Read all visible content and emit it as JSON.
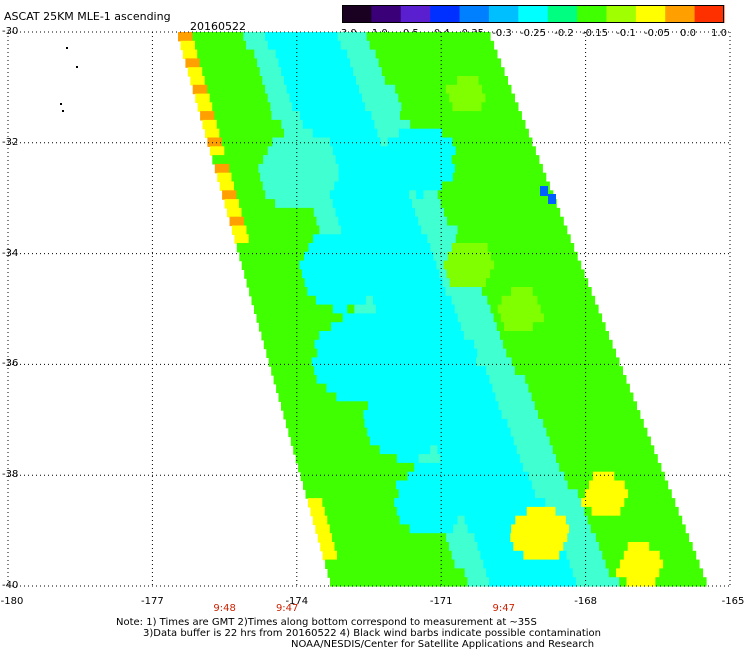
{
  "header": {
    "title": "ASCAT 25KM MLE-1 ascending",
    "date": "20160522"
  },
  "colorbar": {
    "ticks": [
      "-3.0",
      "-1.0",
      "-0.5",
      "-0.4",
      "-0.35",
      "-0.3",
      "-0.25",
      "-0.2",
      "-0.15",
      "-0.1",
      "-0.05",
      "0.0",
      "1.0"
    ],
    "colors": [
      "#1a0021",
      "#3a0078",
      "#5a20d0",
      "#0030ff",
      "#0080ff",
      "#00bfff",
      "#00ffff",
      "#00ff80",
      "#40ff00",
      "#a0ff00",
      "#ffff00",
      "#ffa000",
      "#ff3000"
    ]
  },
  "map": {
    "lat_labels": [
      "-30",
      "-32",
      "-34",
      "-36",
      "-38",
      "-40"
    ],
    "lon_labels": [
      "-180",
      "-177",
      "-174",
      "-171",
      "-168",
      "-165"
    ],
    "lat_values": [
      -30,
      -32,
      -34,
      -36,
      -38,
      -40
    ],
    "lon_values": [
      -180,
      -177,
      -174,
      -171,
      -168,
      -165
    ],
    "swath_field": "MLE residual",
    "colors": {
      "cyan": "#00ffff",
      "lightcyan": "#40ffd0",
      "aqua": "#00e6ff",
      "blue": "#0060ff",
      "green": "#40ff00",
      "lime": "#80ff00",
      "yellow": "#ffff00",
      "orange": "#ffa000"
    }
  },
  "times": [
    {
      "lon": -175.5,
      "label": "9:48"
    },
    {
      "lon": -174.2,
      "label": "9:47"
    },
    {
      "lon": -169.7,
      "label": "9:47"
    }
  ],
  "notes": {
    "line1": "Note: 1) Times are GMT 2)Times along bottom correspond to measurement at ~35S",
    "line2": "3)Data buffer is 22 hrs from 20160522 4) Black wind barbs indicate possible contamination",
    "line3": "NOAA/NESDIS/Center for Satellite Applications and Research"
  }
}
